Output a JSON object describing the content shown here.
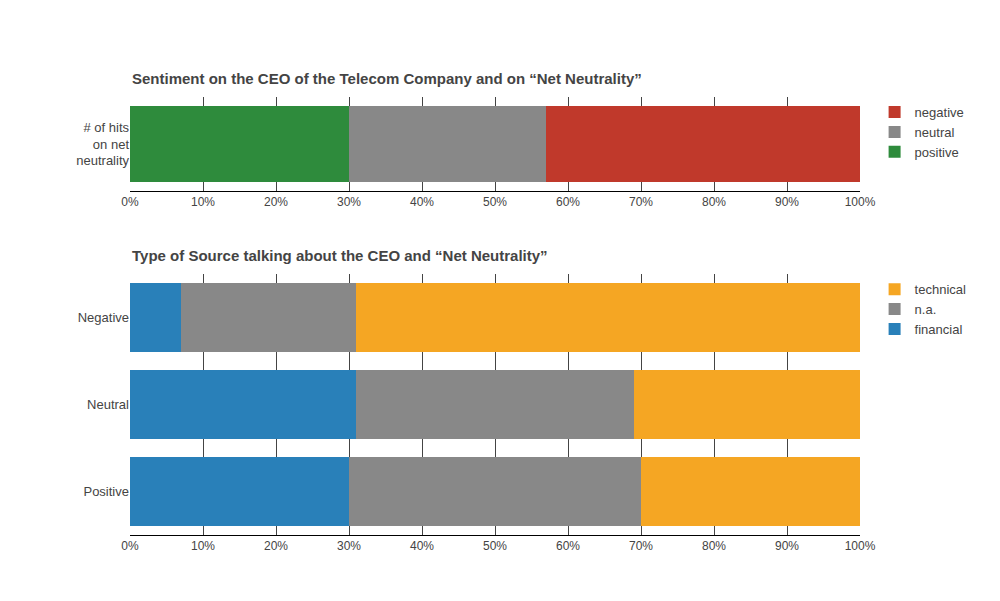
{
  "chart_data": [
    {
      "type": "bar",
      "title": "Sentiment on the CEO of the Telecom Company and on “Net Neutrality”",
      "orientation": "horizontal",
      "stacked": true,
      "categories": [
        "# of hits\non net\nneutrality"
      ],
      "series": [
        {
          "name": "positive",
          "color": "#2e8b3c",
          "values": [
            30
          ]
        },
        {
          "name": "neutral",
          "color": "#888888",
          "values": [
            27
          ]
        },
        {
          "name": "negative",
          "color": "#c0392b",
          "values": [
            43
          ]
        }
      ],
      "xlim": [
        0,
        100
      ],
      "xticks": [
        {
          "value": 0,
          "label": "0%"
        },
        {
          "value": 10,
          "label": "10%"
        },
        {
          "value": 20,
          "label": "20%"
        },
        {
          "value": 30,
          "label": "30%"
        },
        {
          "value": 40,
          "label": "40%"
        },
        {
          "value": 50,
          "label": "50%"
        },
        {
          "value": 60,
          "label": "60%"
        },
        {
          "value": 70,
          "label": "70%"
        },
        {
          "value": 80,
          "label": "80%"
        },
        {
          "value": 90,
          "label": "90%"
        },
        {
          "value": 100,
          "label": "100%"
        }
      ],
      "grid": true,
      "legend": "right"
    },
    {
      "type": "bar",
      "title": "Type of Source talking about the CEO and “Net Neutrality”",
      "orientation": "horizontal",
      "stacked": true,
      "categories": [
        "Negative",
        "Neutral",
        "Positive"
      ],
      "series": [
        {
          "name": "financial",
          "color": "#2980b9",
          "values": [
            7,
            31,
            30
          ]
        },
        {
          "name": "n.a.",
          "color": "#888888",
          "values": [
            24,
            38,
            40
          ]
        },
        {
          "name": "technical",
          "color": "#f5a623",
          "values": [
            69,
            31,
            30
          ]
        }
      ],
      "xlim": [
        0,
        100
      ],
      "xticks": [
        {
          "value": 0,
          "label": "0%"
        },
        {
          "value": 10,
          "label": "10%"
        },
        {
          "value": 20,
          "label": "20%"
        },
        {
          "value": 30,
          "label": "30%"
        },
        {
          "value": 40,
          "label": "40%"
        },
        {
          "value": 50,
          "label": "50%"
        },
        {
          "value": 60,
          "label": "60%"
        },
        {
          "value": 70,
          "label": "70%"
        },
        {
          "value": 80,
          "label": "80%"
        },
        {
          "value": 90,
          "label": "90%"
        },
        {
          "value": 100,
          "label": "100%"
        }
      ],
      "grid": true,
      "legend": "right"
    }
  ]
}
